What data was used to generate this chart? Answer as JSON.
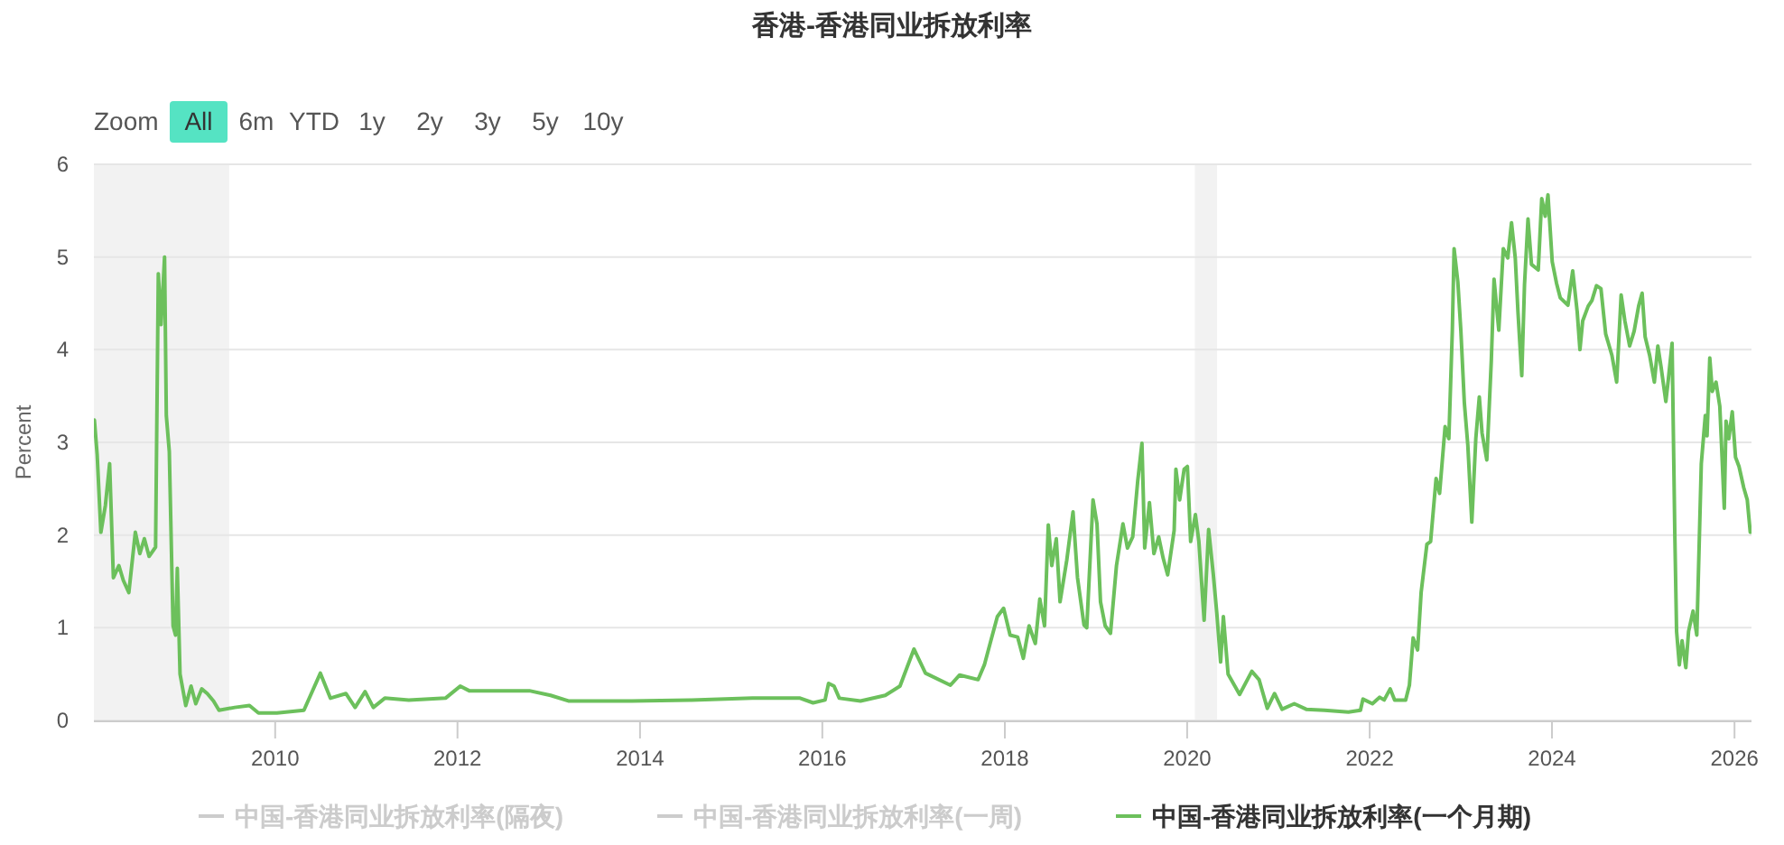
{
  "chart_data": {
    "type": "line",
    "title": "香港-香港同业拆放利率",
    "ylabel": "Percent",
    "annotations": [
      "Zoom",
      "All",
      "6m",
      "YTD",
      "1y",
      "2y",
      "3y",
      "5y",
      "10y"
    ],
    "xlim": [
      "2008-01-06",
      "2026-03-10"
    ],
    "ylim": [
      0,
      6
    ],
    "xticks": [
      "2010",
      "2012",
      "2014",
      "2016",
      "2018",
      "2020",
      "2022",
      "2024",
      "2026"
    ],
    "yticks": [
      0,
      1,
      2,
      3,
      4,
      5,
      6
    ],
    "grid": "y",
    "legend": "bottom",
    "bands": [
      {
        "axis": "x",
        "from": "2008-01-06",
        "to": "2009-07-01",
        "color": "#f2f2f2"
      },
      {
        "axis": "x",
        "from": "2020-02-01",
        "to": "2020-04-30",
        "color": "#f2f2f2"
      }
    ],
    "x": [
      "2008-01-08",
      "2008-01-19",
      "2008-02-03",
      "2008-02-21",
      "2008-03-09",
      "2008-03-24",
      "2008-04-15",
      "2008-05-03",
      "2008-05-25",
      "2008-06-20",
      "2008-07-08",
      "2008-07-26",
      "2008-08-14",
      "2008-09-09",
      "2008-09-20",
      "2008-10-01",
      "2008-10-15",
      "2008-10-22",
      "2008-11-03",
      "2008-11-18",
      "2008-11-28",
      "2008-12-05",
      "2008-12-16",
      "2009-01-08",
      "2009-01-29",
      "2009-02-17",
      "2009-03-13",
      "2009-04-04",
      "2009-04-29",
      "2009-05-21",
      "2009-07-23",
      "2009-09-20",
      "2009-10-26",
      "2010-01-08",
      "2010-04-26",
      "2010-07-01",
      "2010-08-10",
      "2010-10-11",
      "2010-11-17",
      "2010-12-27",
      "2011-01-29",
      "2011-03-16",
      "2011-06-20",
      "2011-11-14",
      "2012-01-12",
      "2012-02-17",
      "2012-10-15",
      "2013-01-08",
      "2013-03-20",
      "2013-11-28",
      "2014-07-26",
      "2015-03-27",
      "2015-10-04",
      "2015-11-25",
      "2016-01-12",
      "2016-01-26",
      "2016-02-17",
      "2016-03-09",
      "2016-06-02",
      "2016-09-09",
      "2016-11-07",
      "2017-01-02",
      "2017-02-17",
      "2017-05-28",
      "2017-07-04",
      "2017-09-16",
      "2017-10-11",
      "2017-11-03",
      "2017-12-02",
      "2017-12-27",
      "2018-01-22",
      "2018-02-21",
      "2018-03-16",
      "2018-04-08",
      "2018-05-03",
      "2018-05-21",
      "2018-06-09",
      "2018-06-24",
      "2018-07-08",
      "2018-07-26",
      "2018-08-10",
      "2018-09-06",
      "2018-10-01",
      "2018-10-19",
      "2018-11-14",
      "2018-11-25",
      "2018-12-20",
      "2019-01-05",
      "2019-01-19",
      "2019-02-07",
      "2019-02-28",
      "2019-03-24",
      "2019-04-19",
      "2019-05-07",
      "2019-05-28",
      "2019-06-17",
      "2019-07-04",
      "2019-07-15",
      "2019-08-03",
      "2019-08-21",
      "2019-09-09",
      "2019-09-27",
      "2019-10-15",
      "2019-11-10",
      "2019-11-17",
      "2019-12-02",
      "2019-12-20",
      "2020-01-02",
      "2020-01-15",
      "2020-02-03",
      "2020-02-17",
      "2020-03-09",
      "2020-03-27",
      "2020-04-15",
      "2020-04-29",
      "2020-05-14",
      "2020-05-25",
      "2020-06-13",
      "2020-07-29",
      "2020-09-16",
      "2020-10-15",
      "2020-11-17",
      "2020-12-16",
      "2021-01-15",
      "2021-03-05",
      "2021-04-22",
      "2021-07-04",
      "2021-10-08",
      "2021-11-25",
      "2021-12-05",
      "2022-01-12",
      "2022-02-10",
      "2022-02-28",
      "2022-03-24",
      "2022-04-11",
      "2022-05-25",
      "2022-06-09",
      "2022-06-24",
      "2022-07-12",
      "2022-07-26",
      "2022-08-18",
      "2022-09-02",
      "2022-09-24",
      "2022-10-08",
      "2022-10-30",
      "2022-11-14",
      "2022-11-28",
      "2022-12-05",
      "2022-12-20",
      "2023-01-01",
      "2023-01-15",
      "2023-01-29",
      "2023-02-14",
      "2023-03-02",
      "2023-03-16",
      "2023-03-27",
      "2023-04-15",
      "2023-05-03",
      "2023-05-14",
      "2023-06-02",
      "2023-06-20",
      "2023-07-08",
      "2023-07-23",
      "2023-08-07",
      "2023-08-18",
      "2023-09-02",
      "2023-09-13",
      "2023-09-27",
      "2023-10-11",
      "2023-11-07",
      "2023-11-21",
      "2023-12-05",
      "2023-12-16",
      "2024-01-02",
      "2024-01-19",
      "2024-02-03",
      "2024-03-05",
      "2024-03-24",
      "2024-04-11",
      "2024-04-22",
      "2024-05-03",
      "2024-05-25",
      "2024-06-09",
      "2024-06-27",
      "2024-07-15",
      "2024-08-03",
      "2024-08-28",
      "2024-09-16",
      "2024-10-04",
      "2024-10-19",
      "2024-11-07",
      "2024-11-25",
      "2024-12-13",
      "2024-12-27",
      "2025-01-08",
      "2025-01-26",
      "2025-02-14",
      "2025-02-28",
      "2025-03-13",
      "2025-04-01",
      "2025-04-11",
      "2025-04-26",
      "2025-05-07",
      "2025-05-14",
      "2025-05-25",
      "2025-06-05",
      "2025-06-20",
      "2025-07-01",
      "2025-07-19",
      "2025-08-03",
      "2025-08-21",
      "2025-09-06",
      "2025-09-13",
      "2025-09-24",
      "2025-10-04",
      "2025-10-19",
      "2025-11-03",
      "2025-11-10",
      "2025-11-21",
      "2025-11-28",
      "2025-12-09",
      "2025-12-23",
      "2026-01-05",
      "2026-01-19",
      "2026-02-07",
      "2026-02-21",
      "2026-03-05"
    ],
    "series": [
      {
        "name": "中国-香港同业拆放利率(隔夜)",
        "color": "#cccccc",
        "values": [
          null,
          null,
          null,
          null,
          null,
          null,
          null,
          null,
          null,
          null,
          null,
          null,
          null,
          null,
          null,
          null,
          null,
          null,
          null,
          null,
          null,
          null,
          null,
          null,
          null,
          null,
          null,
          null,
          null,
          null,
          null,
          null,
          null,
          null,
          null,
          null,
          null,
          null,
          null,
          null,
          null,
          null,
          null,
          null,
          null,
          null,
          null,
          null,
          null,
          null,
          null,
          null,
          null,
          null,
          null,
          null,
          null,
          null,
          null,
          null,
          null,
          null,
          null,
          null,
          null,
          null,
          null,
          null,
          null,
          null,
          null,
          null,
          null,
          null,
          null,
          null,
          null,
          null,
          null,
          null,
          null,
          null,
          null,
          null,
          null,
          null,
          null,
          null,
          null,
          null,
          null,
          null,
          null,
          null,
          null,
          null,
          null,
          null,
          null,
          null,
          null,
          null,
          null,
          null,
          null,
          null,
          null,
          null,
          null,
          null,
          null,
          null,
          null,
          null,
          null,
          null,
          null,
          null,
          null,
          null,
          null,
          null,
          null,
          null,
          null,
          null,
          null,
          null,
          null,
          null,
          null,
          null,
          null,
          null,
          null,
          null,
          null,
          null,
          null,
          null,
          null,
          null,
          null,
          null,
          null,
          null,
          null,
          null,
          null,
          null,
          null,
          null,
          null,
          null,
          null,
          null,
          null,
          null,
          null,
          null,
          null,
          null,
          null,
          null,
          null,
          null,
          null,
          null,
          null,
          null,
          null,
          null,
          null,
          null,
          null,
          null,
          null,
          null,
          null,
          null,
          null,
          null,
          null,
          null,
          null,
          null,
          null,
          null,
          null,
          null,
          null,
          null,
          null,
          null,
          null,
          null,
          null,
          null,
          null,
          null,
          null,
          null,
          null,
          null,
          null,
          null,
          null,
          null,
          null,
          null,
          null,
          null,
          null,
          null,
          null,
          null,
          null,
          null,
          null,
          null,
          null,
          null,
          null,
          null,
          null,
          null,
          null
        ]
      },
      {
        "name": "中国-香港同业拆放利率(一周)",
        "color": "#cccccc",
        "values": [
          null,
          null,
          null,
          null,
          null,
          null,
          null,
          null,
          null,
          null,
          null,
          null,
          null,
          null,
          null,
          null,
          null,
          null,
          null,
          null,
          null,
          null,
          null,
          null,
          null,
          null,
          null,
          null,
          null,
          null,
          null,
          null,
          null,
          null,
          null,
          null,
          null,
          null,
          null,
          null,
          null,
          null,
          null,
          null,
          null,
          null,
          null,
          null,
          null,
          null,
          null,
          null,
          null,
          null,
          null,
          null,
          null,
          null,
          null,
          null,
          null,
          null,
          null,
          null,
          null,
          null,
          null,
          null,
          null,
          null,
          null,
          null,
          null,
          null,
          null,
          null,
          null,
          null,
          null,
          null,
          null,
          null,
          null,
          null,
          null,
          null,
          null,
          null,
          null,
          null,
          null,
          null,
          null,
          null,
          null,
          null,
          null,
          null,
          null,
          null,
          null,
          null,
          null,
          null,
          null,
          null,
          null,
          null,
          null,
          null,
          null,
          null,
          null,
          null,
          null,
          null,
          null,
          null,
          null,
          null,
          null,
          null,
          null,
          null,
          null,
          null,
          null,
          null,
          null,
          null,
          null,
          null,
          null,
          null,
          null,
          null,
          null,
          null,
          null,
          null,
          null,
          null,
          null,
          null,
          null,
          null,
          null,
          null,
          null,
          null,
          null,
          null,
          null,
          null,
          null,
          null,
          null,
          null,
          null,
          null,
          null,
          null,
          null,
          null,
          null,
          null,
          null,
          null,
          null,
          null,
          null,
          null,
          null,
          null,
          null,
          null,
          null,
          null,
          null,
          null,
          null,
          null,
          null,
          null,
          null,
          null,
          null,
          null,
          null,
          null,
          null,
          null,
          null,
          null,
          null,
          null,
          null,
          null,
          null,
          null,
          null,
          null,
          null,
          null,
          null,
          null,
          null,
          null,
          null,
          null,
          null,
          null,
          null,
          null,
          null,
          null,
          null,
          null,
          null,
          null,
          null,
          null,
          null,
          null,
          null,
          null,
          null
        ]
      },
      {
        "name": "中国-香港同业拆放利率(一个月期)",
        "color": "#6cc05c",
        "values": [
          3.24,
          2.87,
          2.03,
          2.32,
          2.77,
          1.54,
          1.67,
          1.51,
          1.38,
          2.03,
          1.8,
          1.96,
          1.77,
          1.87,
          4.82,
          4.27,
          5.0,
          3.29,
          2.9,
          1.02,
          0.92,
          1.64,
          0.5,
          0.16,
          0.37,
          0.18,
          0.34,
          0.29,
          0.21,
          0.11,
          0.14,
          0.16,
          0.08,
          0.08,
          0.11,
          0.51,
          0.24,
          0.29,
          0.14,
          0.31,
          0.14,
          0.24,
          0.22,
          0.24,
          0.37,
          0.32,
          0.32,
          0.27,
          0.21,
          0.21,
          0.22,
          0.24,
          0.24,
          0.19,
          0.22,
          0.4,
          0.37,
          0.24,
          0.21,
          0.27,
          0.37,
          0.77,
          0.51,
          0.38,
          0.49,
          0.44,
          0.6,
          0.83,
          1.12,
          1.21,
          0.92,
          0.9,
          0.67,
          1.02,
          0.83,
          1.31,
          1.02,
          2.11,
          1.67,
          1.96,
          1.28,
          1.73,
          2.25,
          1.54,
          1.03,
          1.0,
          2.38,
          2.12,
          1.28,
          1.02,
          0.94,
          1.67,
          2.12,
          1.86,
          1.98,
          2.58,
          2.99,
          1.86,
          2.35,
          1.8,
          1.98,
          1.75,
          1.57,
          2.05,
          2.71,
          2.38,
          2.71,
          2.74,
          1.93,
          2.22,
          1.93,
          1.08,
          2.06,
          1.57,
          1.15,
          0.63,
          1.12,
          0.5,
          0.28,
          0.53,
          0.44,
          0.13,
          0.29,
          0.12,
          0.18,
          0.12,
          0.11,
          0.09,
          0.11,
          0.23,
          0.18,
          0.25,
          0.22,
          0.34,
          0.22,
          0.22,
          0.38,
          0.89,
          0.76,
          1.38,
          1.9,
          1.93,
          2.61,
          2.45,
          3.17,
          3.04,
          4.21,
          5.09,
          4.73,
          4.21,
          3.43,
          2.97,
          2.14,
          3.04,
          3.49,
          3.1,
          2.81,
          3.88,
          4.76,
          4.21,
          5.09,
          4.99,
          5.37,
          4.99,
          4.4,
          3.72,
          4.7,
          5.41,
          4.92,
          4.86,
          5.63,
          5.44,
          5.67,
          4.95,
          4.72,
          4.56,
          4.48,
          4.85,
          4.41,
          4.0,
          4.31,
          4.47,
          4.53,
          4.69,
          4.66,
          4.17,
          3.94,
          3.65,
          4.59,
          4.31,
          4.04,
          4.2,
          4.47,
          4.61,
          4.14,
          3.94,
          3.65,
          4.04,
          3.81,
          3.44,
          3.68,
          4.07,
          2.0,
          0.96,
          0.6,
          0.86,
          0.57,
          0.96,
          1.18,
          0.92,
          2.77,
          3.29,
          3.07,
          3.91,
          3.55,
          3.65,
          3.39,
          2.97,
          2.29,
          3.23,
          3.04,
          3.33,
          2.84,
          2.74,
          2.51,
          2.38,
          2.03
        ]
      }
    ]
  }
}
